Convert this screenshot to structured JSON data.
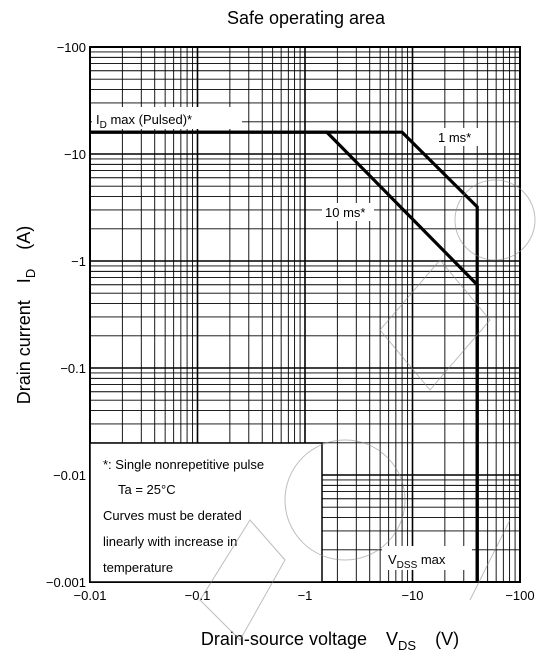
{
  "chart_data": {
    "type": "line",
    "title": "Safe operating area",
    "xscale": "log",
    "yscale": "log",
    "xlim": [
      -0.01,
      -100
    ],
    "ylim": [
      -0.001,
      -100
    ],
    "grid": true,
    "x_ticks": [
      "−0.01",
      "−0.1",
      "−1",
      "−10",
      "−100"
    ],
    "y_ticks": [
      "−100",
      "−10",
      "−1",
      "−0.1",
      "−0.01",
      "−0.001"
    ],
    "xlabel": {
      "text": "Drain-source voltage",
      "symbol": "V",
      "sub": "DS",
      "unit": "(V)"
    },
    "ylabel": {
      "text": "Drain current",
      "symbol": "I",
      "sub": "D",
      "unit": "(A)"
    },
    "series": [
      {
        "name": "1 ms*",
        "x": [
          -0.01,
          -8,
          -40,
          -40
        ],
        "y": [
          -16,
          -16,
          -3.2,
          -0.001
        ]
      },
      {
        "name": "10 ms*",
        "x": [
          -0.01,
          -1.6,
          -40,
          -40
        ],
        "y": [
          -16,
          -16,
          -0.6,
          -0.001
        ]
      }
    ],
    "annotations": {
      "id_max": {
        "symbol": "I",
        "sub": "D",
        "text": " max (Pulsed)*"
      },
      "one_ms": "1 ms*",
      "ten_ms": "10 ms*",
      "vdss": {
        "symbol": "V",
        "sub": "DSS",
        "text": " max"
      }
    },
    "notes": [
      "*: Single nonrepetitive pulse",
      "Ta = 25°C",
      "Curves must be derated",
      "linearly with increase in",
      "temperature"
    ]
  }
}
